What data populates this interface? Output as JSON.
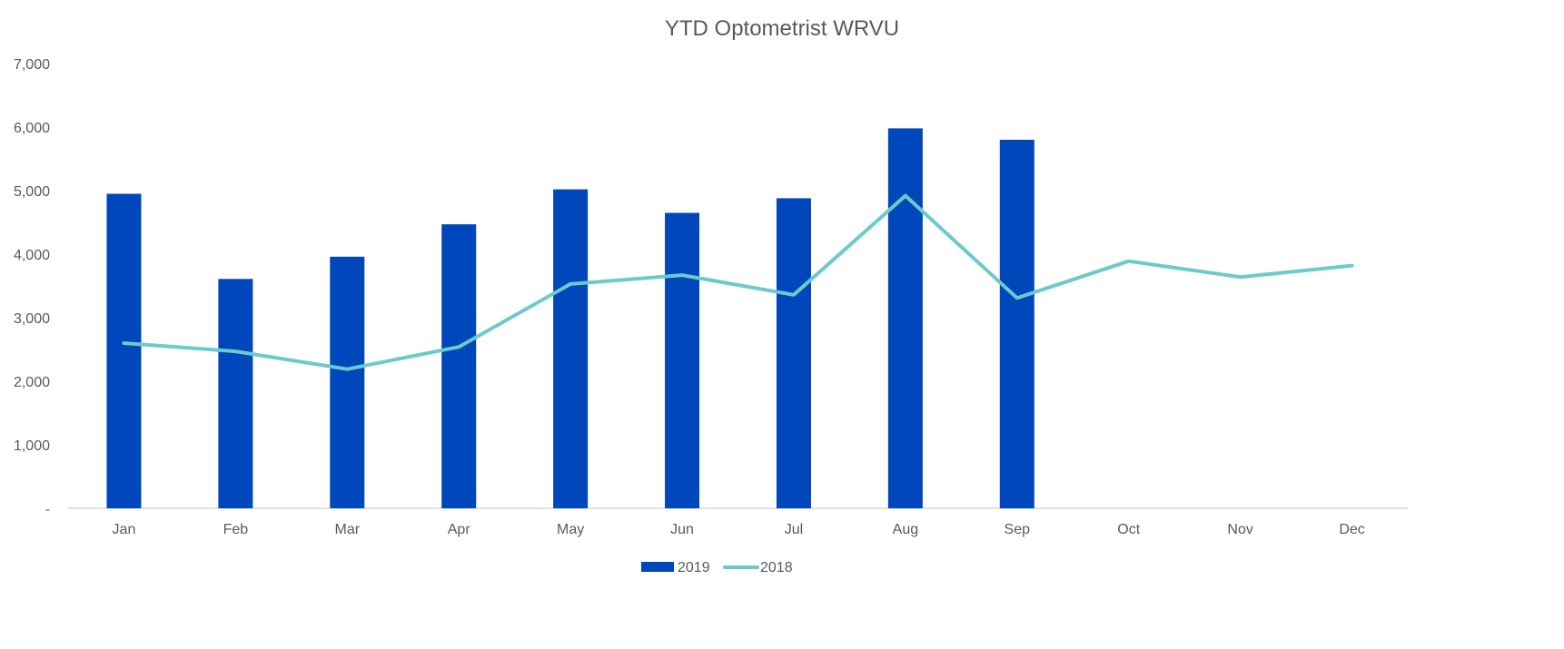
{
  "chart_data": {
    "type": "bar",
    "title": "YTD Optometrist WRVU",
    "xlabel": "",
    "ylabel": "",
    "categories": [
      "Jan",
      "Feb",
      "Mar",
      "Apr",
      "May",
      "Jun",
      "Jul",
      "Aug",
      "Sep",
      "Oct",
      "Nov",
      "Dec"
    ],
    "ylim": [
      0,
      7000
    ],
    "yticks": [
      0,
      1000,
      2000,
      3000,
      4000,
      5000,
      6000,
      7000
    ],
    "ytick_labels": [
      "-",
      "1,000",
      "2,000",
      "3,000",
      "4,000",
      "5,000",
      "6,000",
      "7,000"
    ],
    "grid": false,
    "legend_position": "bottom",
    "series": [
      {
        "name": "2019",
        "type": "bar",
        "color": "#0047BB",
        "values": [
          4950,
          3610,
          3960,
          4470,
          5020,
          4650,
          4880,
          5980,
          5800,
          null,
          null,
          null
        ]
      },
      {
        "name": "2018",
        "type": "line",
        "color": "#6CCACA",
        "values": [
          2600,
          2470,
          2190,
          2540,
          3530,
          3670,
          3360,
          4920,
          3310,
          3890,
          3640,
          3820
        ]
      }
    ]
  }
}
